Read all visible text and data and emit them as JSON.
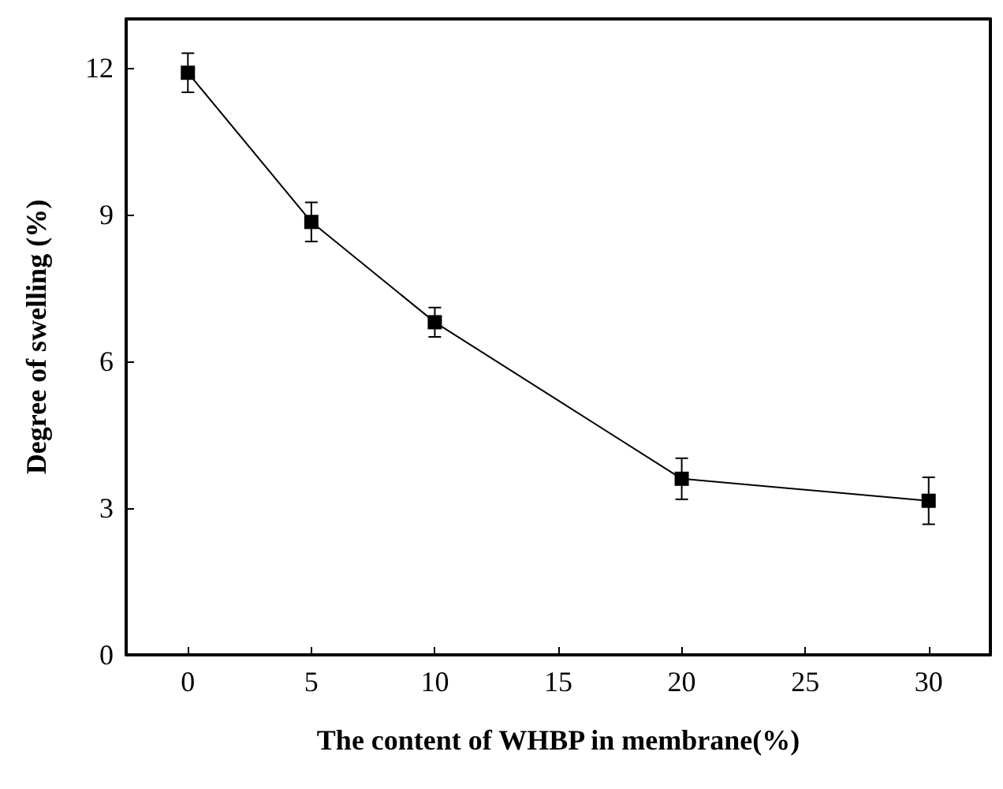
{
  "chart_data": {
    "type": "line",
    "xlabel": "The content of WHBP in membrane(%)",
    "ylabel": "Degree of swelling (%)",
    "x": [
      0,
      5,
      10,
      20,
      30
    ],
    "series": [
      {
        "color": "#000000",
        "values": [
          11.9,
          8.85,
          6.8,
          3.6,
          3.15
        ],
        "errors": [
          0.4,
          0.4,
          0.3,
          0.42,
          0.48
        ]
      }
    ],
    "xlim": [
      -2.5,
      32.5
    ],
    "xticks": [
      0,
      5,
      10,
      15,
      20,
      25,
      30
    ],
    "ylim": [
      0,
      13
    ],
    "yticks": [
      0,
      3,
      6,
      9,
      12
    ],
    "grid": false,
    "marker": "square",
    "line_style": "solid"
  }
}
